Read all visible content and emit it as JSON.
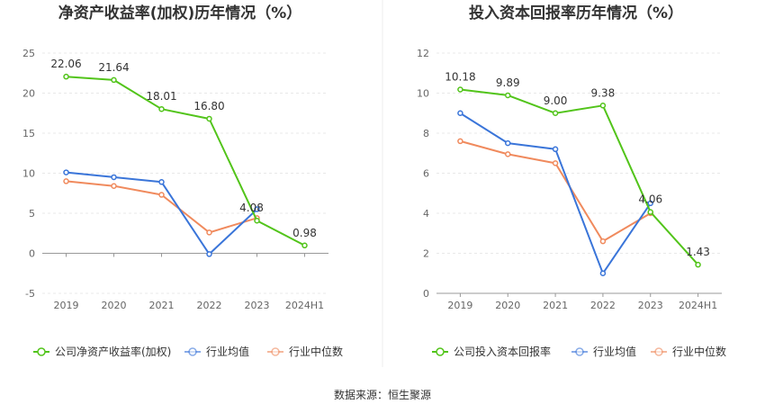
{
  "source": "数据来源：恒生聚源",
  "colors": {
    "company": "#52c41a",
    "average": "#3a75d9",
    "median": "#f08a5d",
    "grid": "#e8e8e8",
    "axis": "#999999"
  },
  "chart_data": [
    {
      "type": "line",
      "title": "净资产收益率(加权)历年情况（%）",
      "categories": [
        "2019",
        "2020",
        "2021",
        "2022",
        "2023",
        "2024H1"
      ],
      "yticks": [
        "-5",
        "0",
        "5",
        "10",
        "15",
        "20",
        "25"
      ],
      "ylim": [
        -5,
        25
      ],
      "series": [
        {
          "key": "company",
          "name": "公司净资产收益率(加权)",
          "values": [
            22.06,
            21.64,
            18.01,
            16.8,
            4.08,
            0.98
          ],
          "labels": [
            "22.06",
            "21.64",
            "18.01",
            "16.80",
            "4.08",
            "0.98"
          ]
        },
        {
          "key": "average",
          "name": "行业均值",
          "values": [
            10.1,
            9.5,
            8.9,
            -0.1,
            5.5,
            null
          ]
        },
        {
          "key": "median",
          "name": "行业中位数",
          "values": [
            9.0,
            8.4,
            7.3,
            2.6,
            4.4,
            null
          ]
        }
      ]
    },
    {
      "type": "line",
      "title": "投入资本回报率历年情况（%）",
      "categories": [
        "2019",
        "2020",
        "2021",
        "2022",
        "2023",
        "2024H1"
      ],
      "yticks": [
        "0",
        "2",
        "4",
        "6",
        "8",
        "10",
        "12"
      ],
      "ylim": [
        0,
        12
      ],
      "series": [
        {
          "key": "company",
          "name": "公司投入资本回报率",
          "values": [
            10.18,
            9.89,
            9.0,
            9.38,
            4.06,
            1.43
          ],
          "labels": [
            "10.18",
            "9.89",
            "9.00",
            "9.38",
            "4.06",
            "1.43"
          ]
        },
        {
          "key": "average",
          "name": "行业均值",
          "values": [
            9.0,
            7.5,
            7.2,
            1.0,
            4.5,
            null
          ]
        },
        {
          "key": "median",
          "name": "行业中位数",
          "values": [
            7.6,
            6.95,
            6.5,
            2.6,
            4.0,
            null
          ]
        }
      ]
    }
  ]
}
